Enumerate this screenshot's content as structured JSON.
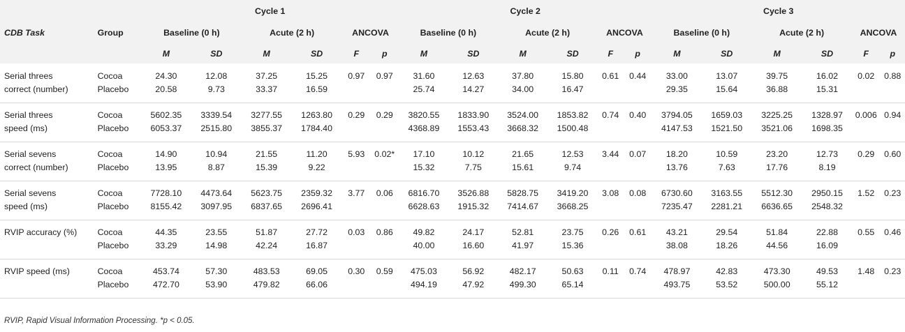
{
  "header": {
    "task_label": "CDB Task",
    "group_label": "Group",
    "cycles": [
      "Cycle 1",
      "Cycle 2",
      "Cycle 3"
    ],
    "sub_groups": [
      "Baseline (0 h)",
      "Acute (2 h)",
      "ANCOVA"
    ],
    "stat_labels": [
      "M",
      "SD",
      "M",
      "SD",
      "F",
      "p"
    ]
  },
  "rows": [
    {
      "task": [
        "Serial threes",
        "correct (number)"
      ],
      "groups": [
        "Cocoa",
        "Placebo"
      ],
      "c1": [
        [
          "24.30",
          "12.08",
          "37.25",
          "15.25",
          "0.97",
          "0.97"
        ],
        [
          "20.58",
          "9.73",
          "33.37",
          "16.59",
          "",
          ""
        ]
      ],
      "c2": [
        [
          "31.60",
          "12.63",
          "37.80",
          "15.80",
          "0.61",
          "0.44"
        ],
        [
          "25.74",
          "14.27",
          "34.00",
          "16.47",
          "",
          ""
        ]
      ],
      "c3": [
        [
          "33.00",
          "13.07",
          "39.75",
          "16.02",
          "0.02",
          "0.88"
        ],
        [
          "29.35",
          "15.64",
          "36.88",
          "15.31",
          "",
          ""
        ]
      ]
    },
    {
      "task": [
        "Serial threes",
        "speed (ms)"
      ],
      "groups": [
        "Cocoa",
        "Placebo"
      ],
      "c1": [
        [
          "5602.35",
          "3339.54",
          "3277.55",
          "1263.80",
          "0.29",
          "0.29"
        ],
        [
          "6053.37",
          "2515.80",
          "3855.37",
          "1784.40",
          "",
          ""
        ]
      ],
      "c2": [
        [
          "3820.55",
          "1833.90",
          "3524.00",
          "1853.82",
          "0.74",
          "0.40"
        ],
        [
          "4368.89",
          "1553.43",
          "3668.32",
          "1500.48",
          "",
          ""
        ]
      ],
      "c3": [
        [
          "3794.05",
          "1659.03",
          "3225.25",
          "1328.97",
          "0.006",
          "0.94"
        ],
        [
          "4147.53",
          "1521.50",
          "3521.06",
          "1698.35",
          "",
          ""
        ]
      ]
    },
    {
      "task": [
        "Serial sevens",
        "correct (number)"
      ],
      "groups": [
        "Cocoa",
        "Placebo"
      ],
      "c1": [
        [
          "14.90",
          "10.94",
          "21.55",
          "11.20",
          "5.93",
          "0.02*"
        ],
        [
          "13.95",
          "8.87",
          "15.39",
          "9.22",
          "",
          ""
        ]
      ],
      "c2": [
        [
          "17.10",
          "10.12",
          "21.65",
          "12.53",
          "3.44",
          "0.07"
        ],
        [
          "15.32",
          "7.75",
          "15.61",
          "9.74",
          "",
          ""
        ]
      ],
      "c3": [
        [
          "18.20",
          "10.59",
          "23.20",
          "12.73",
          "0.29",
          "0.60"
        ],
        [
          "13.76",
          "7.63",
          "17.76",
          "8.19",
          "",
          ""
        ]
      ]
    },
    {
      "task": [
        "Serial sevens",
        "speed (ms)"
      ],
      "groups": [
        "Cocoa",
        "Placebo"
      ],
      "c1": [
        [
          "7728.10",
          "4473.64",
          "5623.75",
          "2359.32",
          "3.77",
          "0.06"
        ],
        [
          "8155.42",
          "3097.95",
          "6837.65",
          "2696.41",
          "",
          ""
        ]
      ],
      "c2": [
        [
          "6816.70",
          "3526.88",
          "5828.75",
          "3419.20",
          "3.08",
          "0.08"
        ],
        [
          "6628.63",
          "1915.32",
          "7414.67",
          "3668.25",
          "",
          ""
        ]
      ],
      "c3": [
        [
          "6730.60",
          "3163.55",
          "5512.30",
          "2950.15",
          "1.52",
          "0.23"
        ],
        [
          "7235.47",
          "2281.21",
          "6636.65",
          "2548.32",
          "",
          ""
        ]
      ]
    },
    {
      "task": [
        "RVIP accuracy (%)",
        ""
      ],
      "groups": [
        "Cocoa",
        "Placebo"
      ],
      "c1": [
        [
          "44.35",
          "23.55",
          "51.87",
          "27.72",
          "0.03",
          "0.86"
        ],
        [
          "33.29",
          "14.98",
          "42.24",
          "16.87",
          "",
          ""
        ]
      ],
      "c2": [
        [
          "49.82",
          "24.17",
          "52.81",
          "23.75",
          "0.26",
          "0.61"
        ],
        [
          "40.00",
          "16.60",
          "41.97",
          "15.36",
          "",
          ""
        ]
      ],
      "c3": [
        [
          "43.21",
          "29.54",
          "51.84",
          "22.88",
          "0.55",
          "0.46"
        ],
        [
          "38.08",
          "18.26",
          "44.56",
          "16.09",
          "",
          ""
        ]
      ]
    },
    {
      "task": [
        "RVIP speed (ms)",
        ""
      ],
      "groups": [
        "Cocoa",
        "Placebo"
      ],
      "c1": [
        [
          "453.74",
          "57.30",
          "483.53",
          "69.05",
          "0.30",
          "0.59"
        ],
        [
          "472.70",
          "53.90",
          "479.82",
          "66.06",
          "",
          ""
        ]
      ],
      "c2": [
        [
          "475.03",
          "56.92",
          "482.17",
          "50.63",
          "0.11",
          "0.74"
        ],
        [
          "494.19",
          "47.92",
          "499.30",
          "65.14",
          "",
          ""
        ]
      ],
      "c3": [
        [
          "478.97",
          "42.83",
          "473.30",
          "49.53",
          "1.48",
          "0.23"
        ],
        [
          "493.75",
          "53.52",
          "500.00",
          "55.12",
          "",
          ""
        ]
      ]
    }
  ],
  "caption": "RVIP, Rapid Visual Information Processing. *p < 0.05."
}
